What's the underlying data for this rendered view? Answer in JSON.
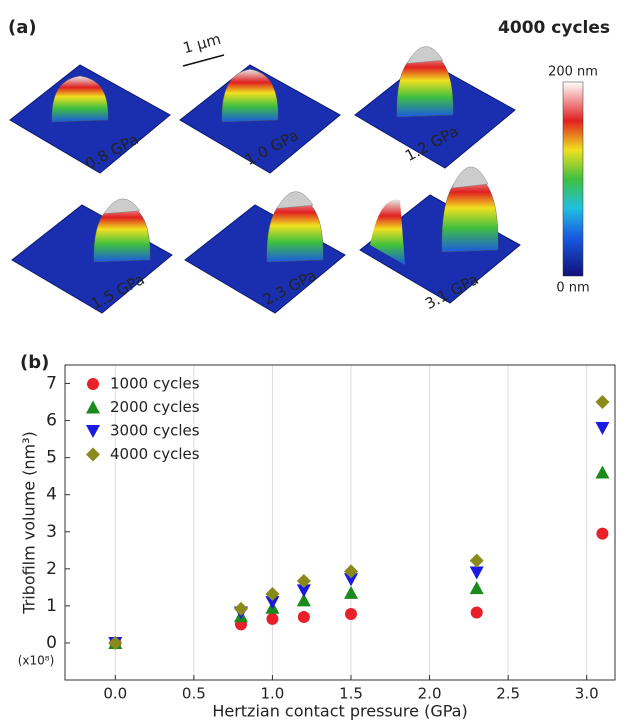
{
  "panel_a": {
    "label": "(a)",
    "title": "4000 cycles",
    "scale_bar": "1 µm",
    "images": [
      "0.8 GPa",
      "1.0 GPa",
      "1.2 GPa",
      "1.5 GPa",
      "2.3 GPa",
      "3.1 GPa"
    ],
    "colorbar": {
      "max_label": "200 nm",
      "min_label": "0 nm"
    }
  },
  "chart_data": {
    "type": "scatter",
    "panel_label": "(b)",
    "x_label": "Hertzian contact pressure (GPa)",
    "y_label": "Tribofilm volume (nm³)",
    "annotation": "(x10⁸)",
    "x": [
      0,
      0.8,
      1.0,
      1.2,
      1.5,
      2.3,
      3.1
    ],
    "series": [
      {
        "name": "1000 cycles",
        "color": "#e8202a",
        "marker": "circle",
        "values": [
          0,
          0.5,
          0.65,
          0.7,
          0.78,
          0.82,
          2.95
        ]
      },
      {
        "name": "2000 cycles",
        "color": "#1a8a1a",
        "marker": "triangle-up",
        "values": [
          0,
          0.72,
          0.95,
          1.15,
          1.35,
          1.48,
          4.6
        ]
      },
      {
        "name": "3000 cycles",
        "color": "#1a1ae0",
        "marker": "triangle-down",
        "values": [
          0,
          0.82,
          1.1,
          1.42,
          1.72,
          1.9,
          5.8
        ]
      },
      {
        "name": "4000 cycles",
        "color": "#8a8a1a",
        "marker": "diamond",
        "values": [
          0,
          0.92,
          1.32,
          1.67,
          1.93,
          2.22,
          6.5
        ]
      }
    ],
    "xlim": [
      -0.32,
      3.18
    ],
    "ylim": [
      -1,
      7.5
    ],
    "xticks": [
      {
        "value": 0,
        "label": "0.0"
      },
      0.5,
      {
        "value": 1,
        "label": "1.0"
      },
      1.5,
      {
        "value": 2,
        "label": "2.0"
      },
      2.5,
      {
        "value": 3,
        "label": "3.0"
      }
    ],
    "yticks": [
      0,
      1,
      2,
      3,
      4,
      5,
      6,
      7
    ],
    "grid": "x",
    "legend": "upper-left"
  }
}
